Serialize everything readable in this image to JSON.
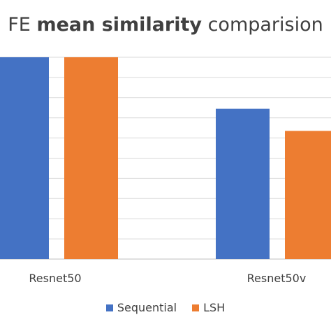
{
  "chart_data": {
    "type": "bar",
    "title_normal_1": "FE ",
    "title_bold": "mean similarity",
    "title_normal_2": " comparision",
    "categories": [
      "Resnet50",
      "Resnet50v"
    ],
    "series": [
      {
        "name": "Sequential",
        "color": "#4472C4",
        "values": [
          1.0,
          0.745
        ]
      },
      {
        "name": "LSH",
        "color": "#ED7D31",
        "values": [
          1.0,
          0.635
        ]
      }
    ],
    "ylim": [
      0,
      1.0
    ],
    "grid": true,
    "legend_position": "bottom"
  }
}
